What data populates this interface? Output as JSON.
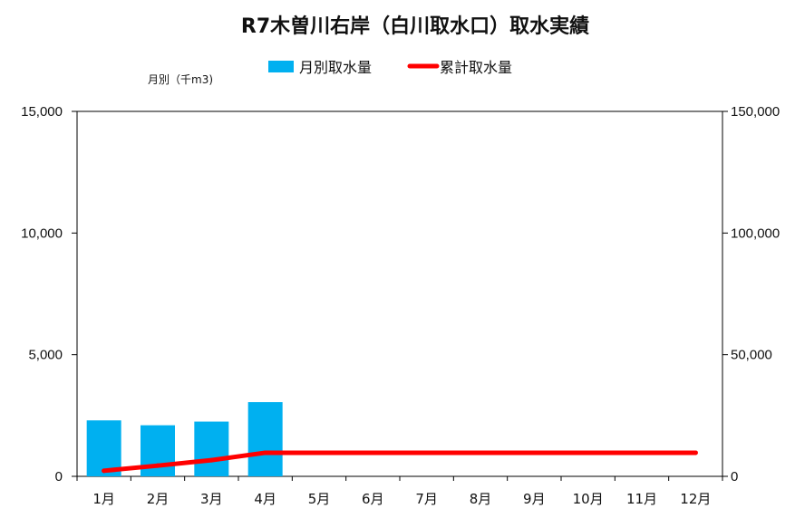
{
  "chart_data": {
    "type": "bar",
    "title": "R7木曽川右岸（白川取水口）取水実績",
    "y_left_label": "月別（千m3)",
    "categories": [
      "1月",
      "2月",
      "3月",
      "4月",
      "5月",
      "6月",
      "7月",
      "8月",
      "9月",
      "10月",
      "11月",
      "12月"
    ],
    "y_left_ticks": [
      "0",
      "5,000",
      "10,000",
      "15,000"
    ],
    "y_right_ticks": [
      "0",
      "50,000",
      "100,000",
      "150,000"
    ],
    "ylim_left": [
      0,
      15000
    ],
    "ylim_right": [
      0,
      150000
    ],
    "grid": false,
    "legend_position": "top-center",
    "series": [
      {
        "name": "月別取水量",
        "kind": "bar",
        "axis": "left",
        "color": "#00B0F0",
        "values": [
          2300,
          2100,
          2250,
          3050,
          null,
          null,
          null,
          null,
          null,
          null,
          null,
          null
        ]
      },
      {
        "name": "累計取水量",
        "kind": "line",
        "axis": "right",
        "color": "#FF0000",
        "values": [
          2300,
          4400,
          6650,
          9700,
          9700,
          9700,
          9700,
          9700,
          9700,
          9700,
          9700,
          9700
        ]
      }
    ]
  }
}
